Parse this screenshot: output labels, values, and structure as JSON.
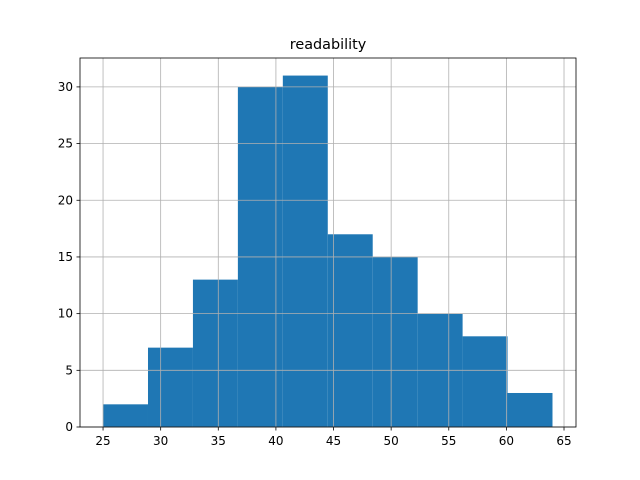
{
  "chart_data": {
    "type": "histogram",
    "title": "readability",
    "bins": [
      25.0,
      28.9,
      32.8,
      36.7,
      40.6,
      44.5,
      48.4,
      52.3,
      56.2,
      60.1,
      64.0
    ],
    "values": [
      2,
      7,
      13,
      30,
      31,
      17,
      15,
      10,
      8,
      3
    ],
    "color": "#1f77b4",
    "xlim": [
      23.0,
      66.04
    ],
    "xticks": [
      25,
      30,
      35,
      40,
      45,
      50,
      55,
      60,
      65
    ],
    "ylim": [
      0,
      32.55
    ],
    "yticks": [
      0,
      5,
      10,
      15,
      20,
      25,
      30
    ],
    "grid": true
  }
}
